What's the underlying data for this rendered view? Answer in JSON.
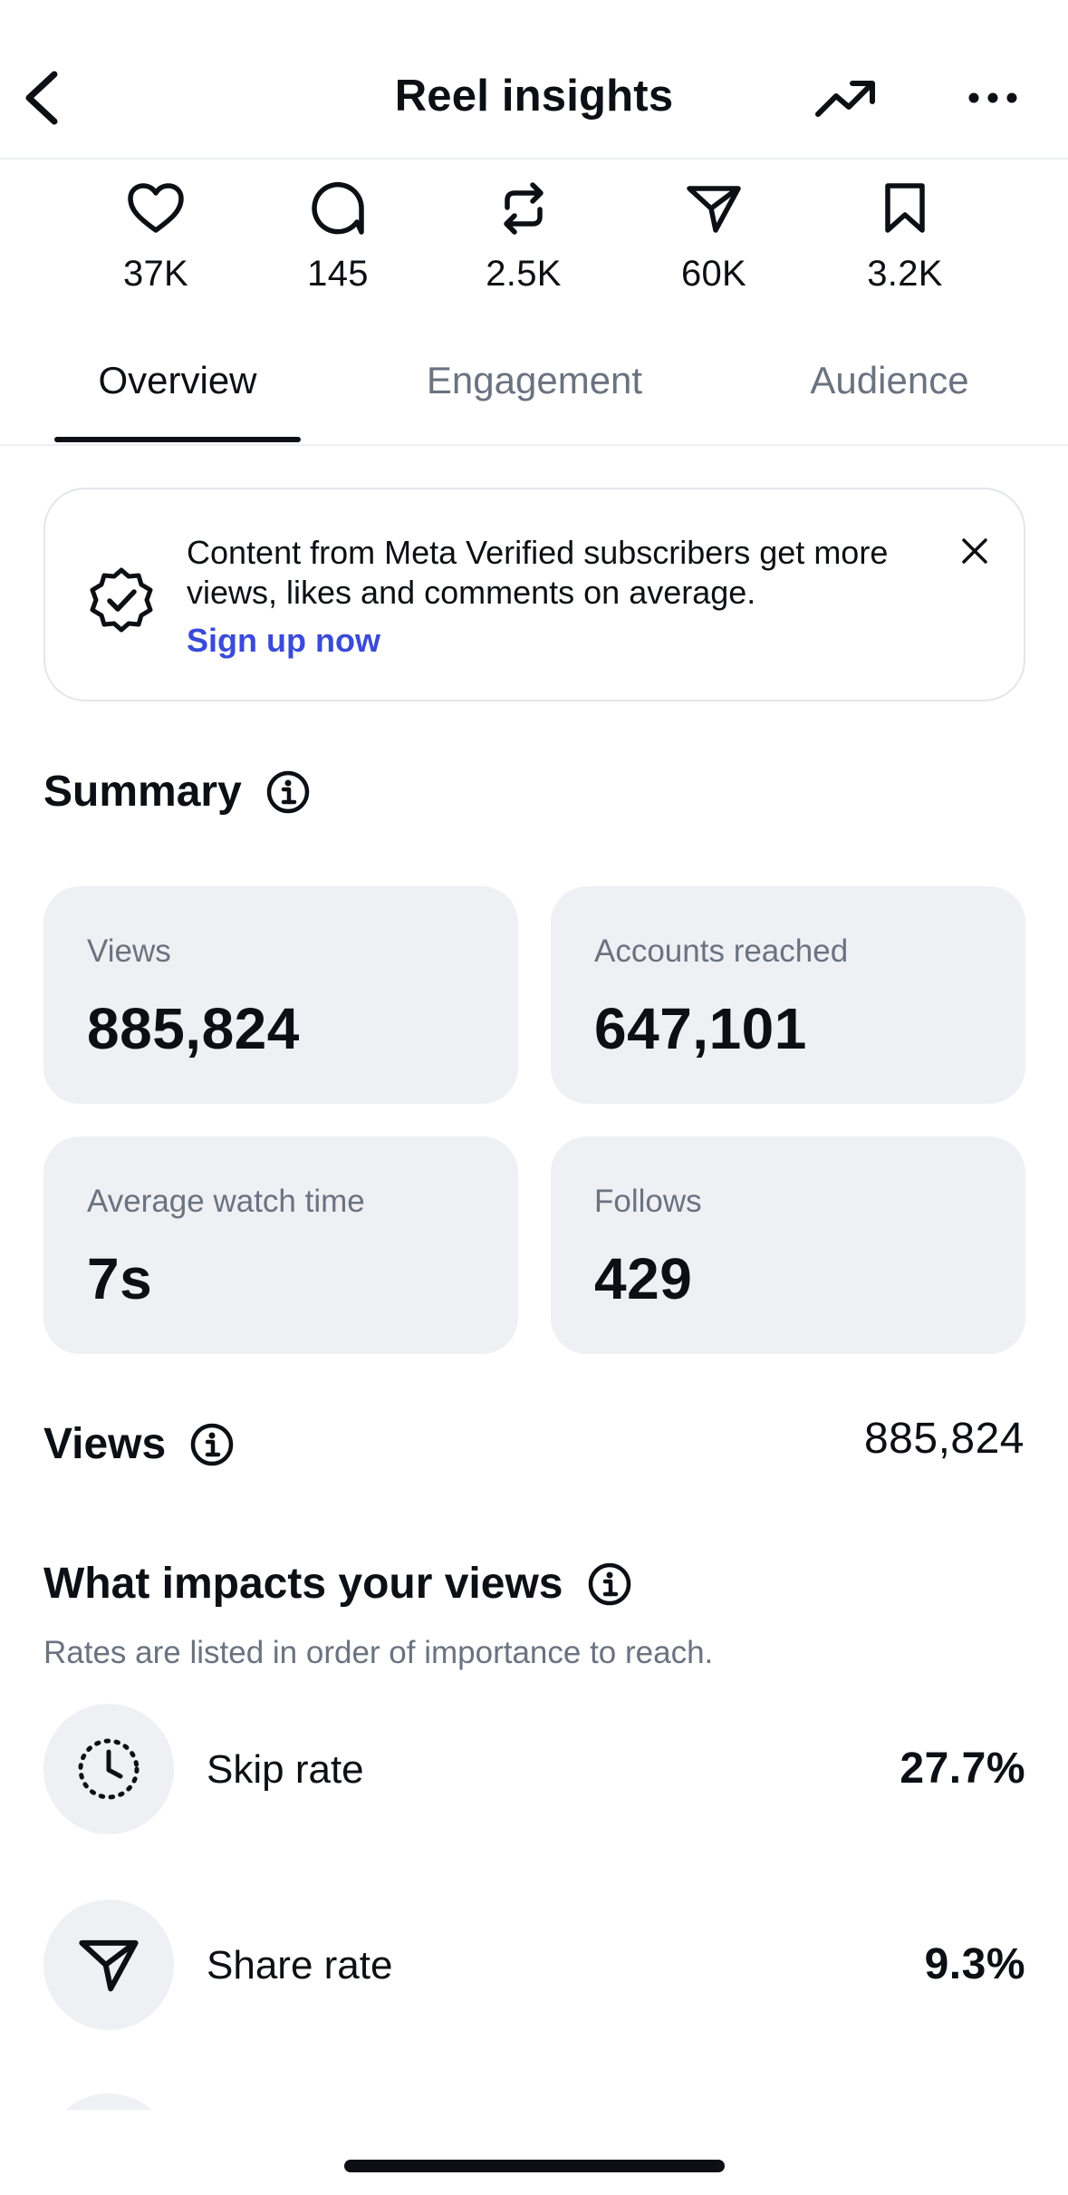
{
  "header": {
    "title": "Reel insights",
    "back_icon": "chevron-left-icon",
    "trend_icon": "trending-up-icon",
    "more_icon": "more-horizontal-icon"
  },
  "stats": [
    {
      "icon": "heart-icon",
      "value": "37K"
    },
    {
      "icon": "comment-icon",
      "value": "145"
    },
    {
      "icon": "repost-icon",
      "value": "2.5K"
    },
    {
      "icon": "share-icon",
      "value": "60K"
    },
    {
      "icon": "bookmark-icon",
      "value": "3.2K"
    }
  ],
  "tabs": [
    {
      "label": "Overview",
      "active": true
    },
    {
      "label": "Engagement",
      "active": false
    },
    {
      "label": "Audience",
      "active": false
    }
  ],
  "banner": {
    "text": "Content from Meta Verified subscribers get more views, likes and comments on average.",
    "link": "Sign up now",
    "link_color": "#3a4bd8",
    "icon": "verified-badge-icon"
  },
  "summary": {
    "title": "Summary",
    "cards": [
      {
        "label": "Views",
        "value": "885,824"
      },
      {
        "label": "Accounts reached",
        "value": "647,101"
      },
      {
        "label": "Average watch time",
        "value": "7s"
      },
      {
        "label": "Follows",
        "value": "429"
      }
    ]
  },
  "views": {
    "title": "Views",
    "total": "885,824"
  },
  "impacts": {
    "title": "What impacts your views",
    "subtitle": "Rates are listed in order of importance to reach.",
    "rates": [
      {
        "icon": "timer-dotted-icon",
        "label": "Skip rate",
        "value": "27.7%"
      },
      {
        "icon": "share-icon",
        "label": "Share rate",
        "value": "9.3%"
      }
    ]
  }
}
